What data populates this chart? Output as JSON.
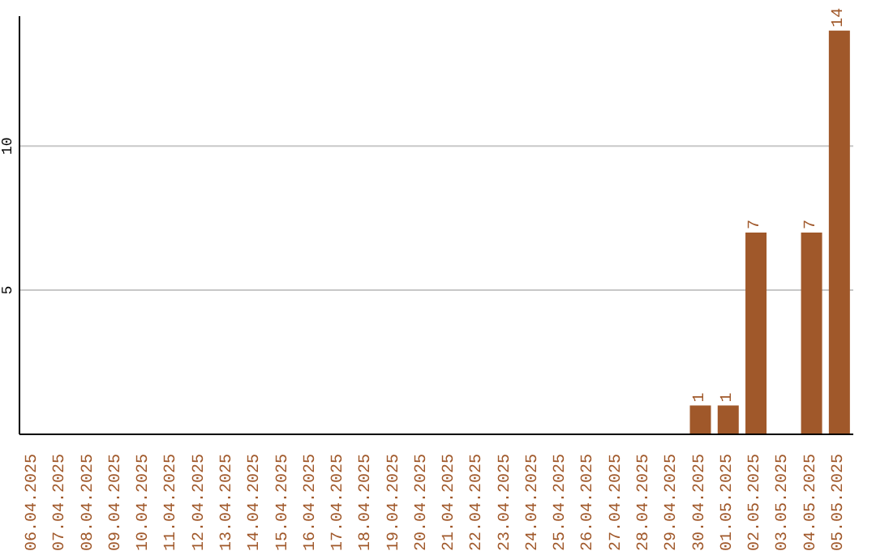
{
  "chart_data": {
    "type": "bar",
    "categories": [
      "06.04.2025",
      "07.04.2025",
      "08.04.2025",
      "09.04.2025",
      "10.04.2025",
      "11.04.2025",
      "12.04.2025",
      "13.04.2025",
      "14.04.2025",
      "15.04.2025",
      "16.04.2025",
      "17.04.2025",
      "18.04.2025",
      "19.04.2025",
      "20.04.2025",
      "21.04.2025",
      "22.04.2025",
      "23.04.2025",
      "24.04.2025",
      "25.04.2025",
      "26.04.2025",
      "27.04.2025",
      "28.04.2025",
      "29.04.2025",
      "30.04.2025",
      "01.05.2025",
      "02.05.2025",
      "03.05.2025",
      "04.05.2025",
      "05.05.2025"
    ],
    "values": [
      0,
      0,
      0,
      0,
      0,
      0,
      0,
      0,
      0,
      0,
      0,
      0,
      0,
      0,
      0,
      0,
      0,
      0,
      0,
      0,
      0,
      0,
      0,
      0,
      1,
      1,
      7,
      0,
      7,
      14
    ],
    "value_labels": [
      null,
      null,
      null,
      null,
      null,
      null,
      null,
      null,
      null,
      null,
      null,
      null,
      null,
      null,
      null,
      null,
      null,
      null,
      null,
      null,
      null,
      null,
      null,
      null,
      "1",
      "1",
      "7",
      null,
      "7",
      "14"
    ],
    "color": "#a0582a",
    "ylim": [
      0,
      14.5
    ],
    "yticks": [
      5,
      10
    ],
    "grid": "y"
  }
}
